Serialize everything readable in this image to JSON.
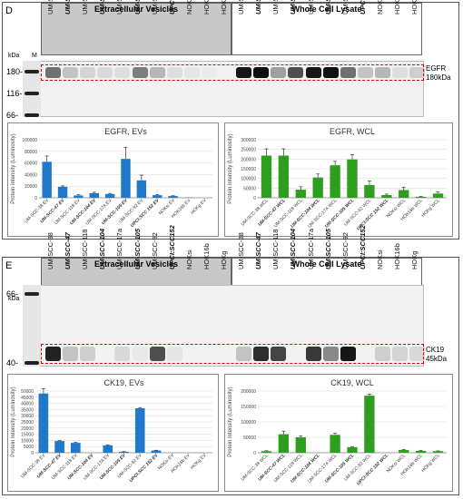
{
  "panel_d": {
    "letter": "D",
    "ev_header": "Extracellular Vesicles",
    "wcl_header": "Whole Cell Lysate",
    "lanes": [
      "UM-SCC-38",
      "UM-SCC-47",
      "UM-SCC-118",
      "UM-SCC-104",
      "UM-SCC-17a",
      "UM-SCC-105",
      "UM-SCC-92",
      "UPCI:SCC152",
      "NOKsi",
      "HOK16b",
      "HOKg",
      "UM-SCC-38",
      "UM-SCC-47",
      "UM-SCC-118",
      "UM-SCC-104",
      "UM-SCC-17a",
      "UM-SCC-105",
      "UM-SCC-92",
      "UPCI:SCC152",
      "NOKsi",
      "HOK16b",
      "HOKg"
    ],
    "kda_label": "kDa",
    "marker_label": "M",
    "markers": [
      "180-",
      "116-",
      "66-"
    ],
    "protein_label": "EGFR",
    "protein_size": "180kDa"
  },
  "panel_e": {
    "letter": "E",
    "ev_header": "Extracellular Vesicles",
    "wcl_header": "Whole Cell Lysate",
    "lanes": [
      "UM-SCC-38",
      "UM-SCC-47",
      "UM-SCC-118",
      "UM-SCC-104",
      "UM-SCC-17a",
      "UM-SCC-105",
      "UM-SCC-92",
      "UPCI:SCC152",
      "NOKsi",
      "HOK16b",
      "HOKg",
      "UM-SCC-38",
      "UM-SCC-47",
      "UM-SCC-118",
      "UM-SCC-104",
      "UM-SCC-17a",
      "UM-SCC-105",
      "UM-SCC-92",
      "UPCI:SCC152",
      "NOKsi",
      "HOK16b",
      "HOKg"
    ],
    "kda_label": "kDa",
    "marker_label": "M",
    "markers": [
      "66-",
      "40-"
    ],
    "protein_label": "CK19",
    "protein_size": "45kDa"
  },
  "chart_data": [
    {
      "type": "bar",
      "title": "EGFR, EVs",
      "ylabel": "Protein Intensity (Luminosity)",
      "ylim": [
        0,
        100000
      ],
      "yticks": [
        "0",
        "20000",
        "40000",
        "60000",
        "80000",
        "100000"
      ],
      "categories": [
        "UM-SCC-38 EV",
        "UM-SCC-47 EV",
        "UM-SCC-118 EV",
        "UM-SCC-104 EV",
        "UM-SCC-17A EV",
        "UM-SCC-105 EV",
        "UM-SCC-92 EV",
        "UPCI:SCC 152 EV",
        "NOKsi EV",
        "HOK16b EV",
        "HOKg EV"
      ],
      "values": [
        62000,
        19000,
        4000,
        8000,
        6500,
        67000,
        30000,
        4500,
        3000,
        500,
        0
      ],
      "errors": [
        10000,
        1500,
        1500,
        1500,
        1000,
        20000,
        9000,
        1000,
        500,
        0,
        0
      ],
      "color": "#1f78c8",
      "grid": true
    },
    {
      "type": "bar",
      "title": "EGFR, WCL",
      "ylabel": "Protein Intensity (Luminosity)",
      "ylim": [
        0,
        300000
      ],
      "yticks": [
        "0",
        "50000",
        "100000",
        "150000",
        "200000",
        "250000",
        "300000"
      ],
      "categories": [
        "UM-SCC-38 WCL",
        "UM-SCC-47 WCL",
        "UM-SCC-118 WCL",
        "UM-SCC-104 WCL",
        "UM-SCC-17A WCL",
        "UM-SCC-105 WCL",
        "UM-SCC-92 WCL",
        "UPCI:SCC 152 WCL",
        "NOKsi WCL",
        "HOK16b WCL",
        "HOKg WCL"
      ],
      "values": [
        218000,
        218000,
        42000,
        105000,
        168000,
        198000,
        66000,
        14000,
        40000,
        5000,
        22000
      ],
      "errors": [
        35000,
        35000,
        15000,
        18000,
        20000,
        25000,
        20000,
        5000,
        15000,
        2000,
        8000
      ],
      "color": "#2e9e1f",
      "grid": true
    },
    {
      "type": "bar",
      "title": "CK19, EVs",
      "ylabel": "Protein Intensity (Luminosity)",
      "ylim": [
        0,
        50000
      ],
      "yticks": [
        "0",
        "5000",
        "10000",
        "15000",
        "20000",
        "25000",
        "30000",
        "35000",
        "40000",
        "45000",
        "50000"
      ],
      "categories": [
        "UM-SCC-38 EV",
        "UM-SCC-47 EV",
        "UM-SCC-118 EV",
        "UM-SCC-104 EV",
        "UM-SCC-17A EV",
        "UM-SCC-105 EV",
        "UM-SCC-92 EV",
        "UPCI:SCC 152 EV",
        "NOKsi EV",
        "HOK16b EV",
        "HOKg EV"
      ],
      "values": [
        48000,
        9500,
        8000,
        0,
        6000,
        800,
        36000,
        1800,
        0,
        0,
        0
      ],
      "errors": [
        4000,
        600,
        400,
        0,
        400,
        100,
        600,
        200,
        0,
        0,
        0
      ],
      "color": "#1f78c8",
      "grid": true
    },
    {
      "type": "bar",
      "title": "CK19, WCL",
      "ylabel": "Protein Intensity (Luminosity)",
      "ylim": [
        0,
        200000
      ],
      "yticks": [
        "0",
        "50000",
        "100000",
        "150000",
        "200000"
      ],
      "categories": [
        "UM-SCC-38 WCL",
        "UM-SCC-47 WCL",
        "UM-SCC-118 WCL",
        "UM-SCC-104 WCL",
        "UM-SCC-17A WCL",
        "UM-SCC-105 WCL",
        "UM-SCC-92 WCL",
        "UPCI:SCC 152 WCL",
        "NOKsi WCL",
        "HOK16b WCL",
        "HOKg WCL"
      ],
      "values": [
        5000,
        60000,
        50000,
        0,
        58000,
        18000,
        185000,
        0,
        9000,
        6000,
        5000
      ],
      "errors": [
        1500,
        10000,
        4000,
        0,
        5000,
        2000,
        5000,
        0,
        1500,
        1000,
        1000
      ],
      "color": "#2e9e1f",
      "grid": true
    }
  ]
}
